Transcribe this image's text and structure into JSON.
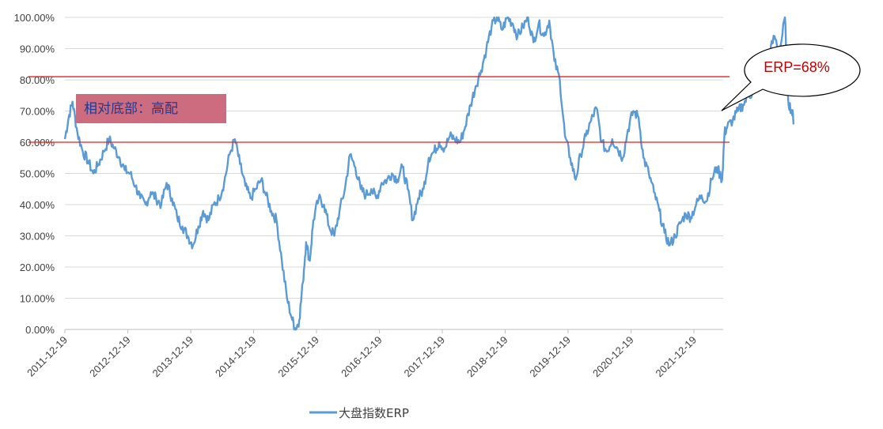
{
  "chart_data": {
    "type": "line",
    "title": "",
    "xlabel": "",
    "ylabel": "",
    "ylim": [
      0,
      100
    ],
    "y_unit": "%",
    "y_ticks": [
      "0.00%",
      "10.00%",
      "20.00%",
      "30.00%",
      "40.00%",
      "50.00%",
      "60.00%",
      "70.00%",
      "80.00%",
      "90.00%",
      "100.00%"
    ],
    "x_ticks": [
      "2011-12-19",
      "2012-12-19",
      "2013-12-19",
      "2014-12-19",
      "2015-12-19",
      "2016-12-19",
      "2017-12-19",
      "2018-12-19",
      "2019-12-19",
      "2020-12-19",
      "2021-12-19"
    ],
    "grid": "horizontal",
    "legend_position": "bottom",
    "series": [
      {
        "name": "大盘指数ERP",
        "color": "#5b9bd5",
        "points": [
          [
            "2011-12-19",
            61
          ],
          [
            "2012-01-10",
            68
          ],
          [
            "2012-02-01",
            73
          ],
          [
            "2012-03-01",
            63
          ],
          [
            "2012-04-01",
            57
          ],
          [
            "2012-05-01",
            54
          ],
          [
            "2012-06-01",
            50
          ],
          [
            "2012-07-01",
            53
          ],
          [
            "2012-08-01",
            57
          ],
          [
            "2012-09-01",
            61
          ],
          [
            "2012-10-01",
            58
          ],
          [
            "2012-11-01",
            55
          ],
          [
            "2012-12-01",
            51
          ],
          [
            "2013-01-01",
            50
          ],
          [
            "2013-02-01",
            46
          ],
          [
            "2013-03-01",
            42
          ],
          [
            "2013-04-01",
            40
          ],
          [
            "2013-05-01",
            44
          ],
          [
            "2013-06-01",
            42
          ],
          [
            "2013-07-01",
            40
          ],
          [
            "2013-08-01",
            47
          ],
          [
            "2013-09-01",
            42
          ],
          [
            "2013-10-01",
            36
          ],
          [
            "2013-11-01",
            33
          ],
          [
            "2013-12-01",
            30
          ],
          [
            "2014-01-01",
            27
          ],
          [
            "2014-02-01",
            33
          ],
          [
            "2014-03-01",
            38
          ],
          [
            "2014-04-01",
            35
          ],
          [
            "2014-05-01",
            40
          ],
          [
            "2014-06-01",
            42
          ],
          [
            "2014-07-01",
            47
          ],
          [
            "2014-08-01",
            56
          ],
          [
            "2014-09-01",
            61
          ],
          [
            "2014-10-01",
            53
          ],
          [
            "2014-11-01",
            46
          ],
          [
            "2014-12-01",
            42
          ],
          [
            "2015-01-01",
            45
          ],
          [
            "2015-02-01",
            48
          ],
          [
            "2015-03-01",
            43
          ],
          [
            "2015-04-01",
            38
          ],
          [
            "2015-05-01",
            35
          ],
          [
            "2015-06-01",
            22
          ],
          [
            "2015-07-01",
            10
          ],
          [
            "2015-08-01",
            3
          ],
          [
            "2015-08-20",
            0
          ],
          [
            "2015-09-10",
            3
          ],
          [
            "2015-10-01",
            15
          ],
          [
            "2015-10-20",
            28
          ],
          [
            "2015-11-10",
            22
          ],
          [
            "2015-12-01",
            35
          ],
          [
            "2016-01-01",
            42
          ],
          [
            "2016-02-01",
            40
          ],
          [
            "2016-03-01",
            33
          ],
          [
            "2016-04-01",
            30
          ],
          [
            "2016-05-01",
            38
          ],
          [
            "2016-06-01",
            45
          ],
          [
            "2016-07-01",
            56
          ],
          [
            "2016-08-01",
            52
          ],
          [
            "2016-09-01",
            45
          ],
          [
            "2016-10-01",
            43
          ],
          [
            "2016-11-01",
            45
          ],
          [
            "2016-12-01",
            42
          ],
          [
            "2017-01-01",
            47
          ],
          [
            "2017-02-01",
            48
          ],
          [
            "2017-03-01",
            50
          ],
          [
            "2017-04-01",
            48
          ],
          [
            "2017-05-01",
            52
          ],
          [
            "2017-06-01",
            45
          ],
          [
            "2017-07-01",
            35
          ],
          [
            "2017-08-01",
            42
          ],
          [
            "2017-09-01",
            45
          ],
          [
            "2017-10-01",
            55
          ],
          [
            "2017-11-01",
            57
          ],
          [
            "2017-12-01",
            60
          ],
          [
            "2018-01-01",
            58
          ],
          [
            "2018-02-01",
            62
          ],
          [
            "2018-03-01",
            61
          ],
          [
            "2018-04-01",
            60
          ],
          [
            "2018-05-01",
            65
          ],
          [
            "2018-06-01",
            72
          ],
          [
            "2018-07-01",
            78
          ],
          [
            "2018-08-01",
            83
          ],
          [
            "2018-09-01",
            90
          ],
          [
            "2018-10-01",
            97
          ],
          [
            "2018-11-01",
            100
          ],
          [
            "2018-12-01",
            96
          ],
          [
            "2019-01-01",
            100
          ],
          [
            "2019-02-01",
            98
          ],
          [
            "2019-03-01",
            94
          ],
          [
            "2019-04-01",
            97
          ],
          [
            "2019-05-01",
            100
          ],
          [
            "2019-06-01",
            92
          ],
          [
            "2019-07-01",
            98
          ],
          [
            "2019-08-01",
            94
          ],
          [
            "2019-09-01",
            99
          ],
          [
            "2019-10-01",
            86
          ],
          [
            "2019-11-01",
            80
          ],
          [
            "2019-12-01",
            62
          ],
          [
            "2020-01-01",
            55
          ],
          [
            "2020-02-01",
            48
          ],
          [
            "2020-03-01",
            56
          ],
          [
            "2020-04-01",
            62
          ],
          [
            "2020-05-01",
            67
          ],
          [
            "2020-06-01",
            71
          ],
          [
            "2020-07-01",
            60
          ],
          [
            "2020-08-01",
            57
          ],
          [
            "2020-09-01",
            61
          ],
          [
            "2020-10-01",
            58
          ],
          [
            "2020-11-01",
            55
          ],
          [
            "2020-12-01",
            64
          ],
          [
            "2021-01-01",
            70
          ],
          [
            "2021-02-01",
            68
          ],
          [
            "2021-03-01",
            55
          ],
          [
            "2021-04-01",
            50
          ],
          [
            "2021-05-01",
            44
          ],
          [
            "2021-06-01",
            38
          ],
          [
            "2021-07-01",
            31
          ],
          [
            "2021-08-01",
            27
          ],
          [
            "2021-09-01",
            30
          ],
          [
            "2021-10-01",
            34
          ],
          [
            "2021-11-01",
            37
          ],
          [
            "2021-12-01",
            36
          ],
          [
            "2022-01-01",
            40
          ],
          [
            "2022-02-01",
            43
          ],
          [
            "2022-03-01",
            41
          ],
          [
            "2022-04-01",
            48
          ],
          [
            "2022-05-01",
            52
          ],
          [
            "2022-06-01",
            48
          ],
          [
            "2022-06-15",
            63
          ],
          [
            "2022-07-01",
            65
          ],
          [
            "2022-08-01",
            67
          ],
          [
            "2022-09-01",
            70
          ],
          [
            "2022-10-01",
            72
          ],
          [
            "2022-11-01",
            75
          ],
          [
            "2022-12-01",
            76
          ],
          [
            "2023-01-01",
            78
          ],
          [
            "2023-02-01",
            82
          ],
          [
            "2023-03-01",
            88
          ],
          [
            "2023-04-01",
            94
          ],
          [
            "2023-05-01",
            89
          ],
          [
            "2023-06-01",
            100
          ],
          [
            "2023-06-20",
            73
          ],
          [
            "2023-07-10",
            70
          ],
          [
            "2023-07-25",
            66
          ]
        ]
      }
    ],
    "reference_lines": [
      {
        "value": 81,
        "color": "#e02020"
      },
      {
        "value": 60,
        "color": "#e02020"
      }
    ],
    "annotations": {
      "box_label": "相对底部：高配",
      "box_fill": "#cd6c7e",
      "callout_label": "ERP=68%",
      "callout_color": "#c00000"
    }
  }
}
